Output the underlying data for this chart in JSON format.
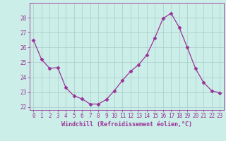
{
  "x": [
    0,
    1,
    2,
    3,
    4,
    5,
    6,
    7,
    8,
    9,
    10,
    11,
    12,
    13,
    14,
    15,
    16,
    17,
    18,
    19,
    20,
    21,
    22,
    23
  ],
  "y": [
    26.5,
    25.2,
    24.6,
    24.65,
    23.3,
    22.75,
    22.55,
    22.2,
    22.2,
    22.5,
    23.1,
    23.8,
    24.4,
    24.85,
    25.5,
    26.65,
    27.95,
    28.3,
    27.35,
    26.0,
    24.6,
    23.65,
    23.1,
    22.95
  ],
  "line_color": "#993399",
  "marker": "D",
  "marker_size": 2.5,
  "bg_color": "#cceee8",
  "grid_color": "#aaccc8",
  "ylim": [
    21.8,
    29.0
  ],
  "yticks": [
    22,
    23,
    24,
    25,
    26,
    27,
    28
  ],
  "xlim": [
    -0.5,
    23.5
  ],
  "xlabel": "Windchill (Refroidissement éolien,°C)",
  "xlabel_color": "#993399",
  "tick_color": "#993399",
  "spine_color": "#993399",
  "tick_fontsize": 5.5,
  "xlabel_fontsize": 6.0
}
